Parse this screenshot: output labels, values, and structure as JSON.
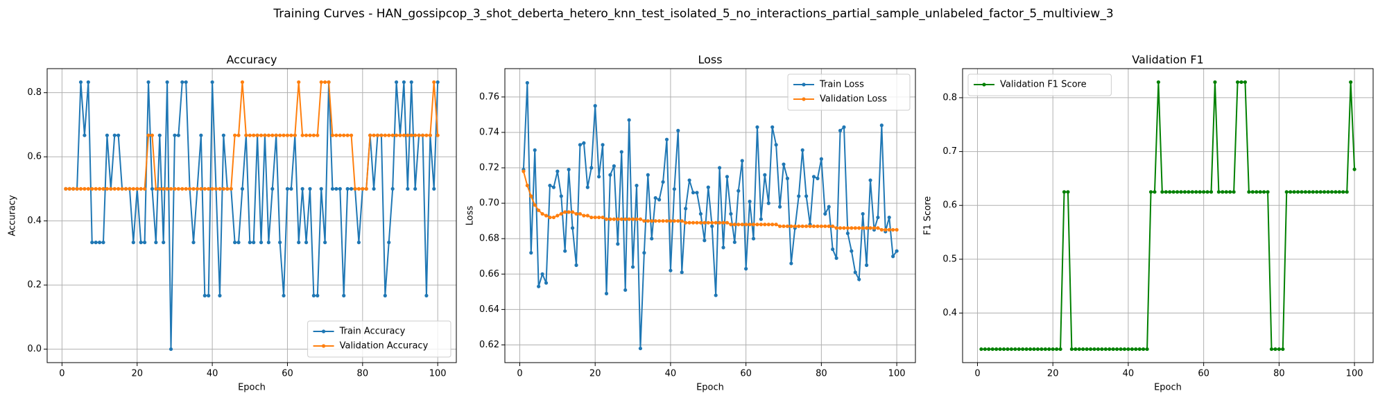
{
  "title": "Training Curves - HAN_gossipcop_3_shot_deberta_hetero_knn_test_isolated_5_no_interactions_partial_sample_unlabeled_factor_5_multiview_3",
  "chart_data": [
    {
      "type": "line",
      "title": "Accuracy",
      "xlabel": "Epoch",
      "ylabel": "Accuracy",
      "x": [
        1,
        2,
        3,
        4,
        5,
        6,
        7,
        8,
        9,
        10,
        11,
        12,
        13,
        14,
        15,
        16,
        17,
        18,
        19,
        20,
        21,
        22,
        23,
        24,
        25,
        26,
        27,
        28,
        29,
        30,
        31,
        32,
        33,
        34,
        35,
        36,
        37,
        38,
        39,
        40,
        41,
        42,
        43,
        44,
        45,
        46,
        47,
        48,
        49,
        50,
        51,
        52,
        53,
        54,
        55,
        56,
        57,
        58,
        59,
        60,
        61,
        62,
        63,
        64,
        65,
        66,
        67,
        68,
        69,
        70,
        71,
        72,
        73,
        74,
        75,
        76,
        77,
        78,
        79,
        80,
        81,
        82,
        83,
        84,
        85,
        86,
        87,
        88,
        89,
        90,
        91,
        92,
        93,
        94,
        95,
        96,
        97,
        98,
        99,
        100
      ],
      "series": [
        {
          "name": "Train Accuracy",
          "color": "#1f77b4",
          "values": [
            0.5,
            0.5,
            0.5,
            0.5,
            0.833,
            0.667,
            0.833,
            0.333,
            0.333,
            0.333,
            0.333,
            0.667,
            0.5,
            0.667,
            0.667,
            0.5,
            0.5,
            0.5,
            0.333,
            0.5,
            0.333,
            0.333,
            0.833,
            0.5,
            0.333,
            0.667,
            0.333,
            0.833,
            0,
            0.667,
            0.667,
            0.833,
            0.833,
            0.5,
            0.333,
            0.5,
            0.667,
            0.167,
            0.167,
            0.833,
            0.5,
            0.167,
            0.667,
            0.5,
            0.5,
            0.333,
            0.333,
            0.5,
            0.667,
            0.333,
            0.333,
            0.667,
            0.333,
            0.667,
            0.333,
            0.5,
            0.667,
            0.333,
            0.167,
            0.5,
            0.5,
            0.667,
            0.333,
            0.5,
            0.333,
            0.5,
            0.167,
            0.167,
            0.5,
            0.333,
            0.833,
            0.5,
            0.5,
            0.5,
            0.167,
            0.5,
            0.5,
            0.5,
            0.333,
            0.5,
            0.5,
            0.667,
            0.5,
            0.667,
            0.667,
            0.167,
            0.333,
            0.5,
            0.833,
            0.667,
            0.833,
            0.5,
            0.833,
            0.5,
            0.667,
            0.667,
            0.167,
            0.667,
            0.5,
            0.833
          ]
        },
        {
          "name": "Validation Accuracy",
          "color": "#ff7f0e",
          "values": [
            0.5,
            0.5,
            0.5,
            0.5,
            0.5,
            0.5,
            0.5,
            0.5,
            0.5,
            0.5,
            0.5,
            0.5,
            0.5,
            0.5,
            0.5,
            0.5,
            0.5,
            0.5,
            0.5,
            0.5,
            0.5,
            0.5,
            0.667,
            0.667,
            0.5,
            0.5,
            0.5,
            0.5,
            0.5,
            0.5,
            0.5,
            0.5,
            0.5,
            0.5,
            0.5,
            0.5,
            0.5,
            0.5,
            0.5,
            0.5,
            0.5,
            0.5,
            0.5,
            0.5,
            0.5,
            0.667,
            0.667,
            0.833,
            0.667,
            0.667,
            0.667,
            0.667,
            0.667,
            0.667,
            0.667,
            0.667,
            0.667,
            0.667,
            0.667,
            0.667,
            0.667,
            0.667,
            0.833,
            0.667,
            0.667,
            0.667,
            0.667,
            0.667,
            0.833,
            0.833,
            0.833,
            0.667,
            0.667,
            0.667,
            0.667,
            0.667,
            0.667,
            0.5,
            0.5,
            0.5,
            0.5,
            0.667,
            0.667,
            0.667,
            0.667,
            0.667,
            0.667,
            0.667,
            0.667,
            0.667,
            0.667,
            0.667,
            0.667,
            0.667,
            0.667,
            0.667,
            0.667,
            0.667,
            0.833,
            0.667
          ]
        }
      ],
      "xlim": [
        -3.95,
        104.95
      ],
      "xticks": [
        0,
        20,
        40,
        60,
        80,
        100
      ],
      "ylim": [
        -0.042,
        0.875
      ],
      "yticks": [
        {
          "value": 0,
          "label": "0.0"
        },
        0.2,
        0.4,
        0.6,
        0.8
      ],
      "grid": true,
      "legend": "lower right"
    },
    {
      "type": "line",
      "title": "Loss",
      "xlabel": "Epoch",
      "ylabel": "Loss",
      "x": [
        1,
        2,
        3,
        4,
        5,
        6,
        7,
        8,
        9,
        10,
        11,
        12,
        13,
        14,
        15,
        16,
        17,
        18,
        19,
        20,
        21,
        22,
        23,
        24,
        25,
        26,
        27,
        28,
        29,
        30,
        31,
        32,
        33,
        34,
        35,
        36,
        37,
        38,
        39,
        40,
        41,
        42,
        43,
        44,
        45,
        46,
        47,
        48,
        49,
        50,
        51,
        52,
        53,
        54,
        55,
        56,
        57,
        58,
        59,
        60,
        61,
        62,
        63,
        64,
        65,
        66,
        67,
        68,
        69,
        70,
        71,
        72,
        73,
        74,
        75,
        76,
        77,
        78,
        79,
        80,
        81,
        82,
        83,
        84,
        85,
        86,
        87,
        88,
        89,
        90,
        91,
        92,
        93,
        94,
        95,
        96,
        97,
        98,
        99,
        100
      ],
      "series": [
        {
          "name": "Train Loss",
          "color": "#1f77b4",
          "values": [
            0.719,
            0.768,
            0.672,
            0.73,
            0.653,
            0.66,
            0.655,
            0.71,
            0.709,
            0.718,
            0.704,
            0.673,
            0.719,
            0.686,
            0.665,
            0.733,
            0.734,
            0.709,
            0.72,
            0.755,
            0.715,
            0.733,
            0.649,
            0.716,
            0.721,
            0.677,
            0.729,
            0.651,
            0.747,
            0.664,
            0.71,
            0.618,
            0.672,
            0.716,
            0.68,
            0.703,
            0.702,
            0.712,
            0.736,
            0.662,
            0.708,
            0.741,
            0.661,
            0.697,
            0.713,
            0.706,
            0.706,
            0.694,
            0.679,
            0.709,
            0.687,
            0.648,
            0.72,
            0.675,
            0.715,
            0.694,
            0.678,
            0.707,
            0.724,
            0.663,
            0.701,
            0.68,
            0.743,
            0.691,
            0.716,
            0.7,
            0.743,
            0.733,
            0.698,
            0.722,
            0.714,
            0.666,
            0.686,
            0.704,
            0.73,
            0.704,
            0.688,
            0.715,
            0.714,
            0.725,
            0.694,
            0.698,
            0.674,
            0.669,
            0.741,
            0.743,
            0.683,
            0.673,
            0.661,
            0.657,
            0.694,
            0.665,
            0.713,
            0.685,
            0.692,
            0.744,
            0.684,
            0.692,
            0.67,
            0.673
          ]
        },
        {
          "name": "Validation Loss",
          "color": "#ff7f0e",
          "values": [
            0.718,
            0.71,
            0.704,
            0.699,
            0.696,
            0.694,
            0.693,
            0.692,
            0.692,
            0.693,
            0.694,
            0.695,
            0.695,
            0.695,
            0.694,
            0.694,
            0.693,
            0.693,
            0.692,
            0.692,
            0.692,
            0.692,
            0.691,
            0.691,
            0.691,
            0.691,
            0.691,
            0.691,
            0.691,
            0.691,
            0.691,
            0.691,
            0.69,
            0.69,
            0.69,
            0.69,
            0.69,
            0.69,
            0.69,
            0.69,
            0.69,
            0.69,
            0.69,
            0.689,
            0.689,
            0.689,
            0.689,
            0.689,
            0.689,
            0.689,
            0.689,
            0.689,
            0.689,
            0.689,
            0.689,
            0.688,
            0.688,
            0.688,
            0.688,
            0.688,
            0.688,
            0.688,
            0.688,
            0.688,
            0.688,
            0.688,
            0.688,
            0.688,
            0.687,
            0.687,
            0.687,
            0.687,
            0.687,
            0.687,
            0.687,
            0.687,
            0.687,
            0.687,
            0.687,
            0.687,
            0.687,
            0.687,
            0.687,
            0.686,
            0.686,
            0.686,
            0.686,
            0.686,
            0.686,
            0.686,
            0.686,
            0.686,
            0.686,
            0.686,
            0.686,
            0.685,
            0.685,
            0.685,
            0.685,
            0.685
          ]
        }
      ],
      "xlim": [
        -3.95,
        104.95
      ],
      "xticks": [
        0,
        20,
        40,
        60,
        80,
        100
      ],
      "ylim": [
        0.61,
        0.776
      ],
      "yticks": [
        0.62,
        0.64,
        0.66,
        0.68,
        {
          "value": 0.7,
          "label": "0.70"
        },
        0.72,
        0.74,
        0.76
      ],
      "grid": true,
      "legend": "upper right"
    },
    {
      "type": "line",
      "title": "Validation F1",
      "xlabel": "Epoch",
      "ylabel": "F1 Score",
      "x": [
        1,
        2,
        3,
        4,
        5,
        6,
        7,
        8,
        9,
        10,
        11,
        12,
        13,
        14,
        15,
        16,
        17,
        18,
        19,
        20,
        21,
        22,
        23,
        24,
        25,
        26,
        27,
        28,
        29,
        30,
        31,
        32,
        33,
        34,
        35,
        36,
        37,
        38,
        39,
        40,
        41,
        42,
        43,
        44,
        45,
        46,
        47,
        48,
        49,
        50,
        51,
        52,
        53,
        54,
        55,
        56,
        57,
        58,
        59,
        60,
        61,
        62,
        63,
        64,
        65,
        66,
        67,
        68,
        69,
        70,
        71,
        72,
        73,
        74,
        75,
        76,
        77,
        78,
        79,
        80,
        81,
        82,
        83,
        84,
        85,
        86,
        87,
        88,
        89,
        90,
        91,
        92,
        93,
        94,
        95,
        96,
        97,
        98,
        99,
        100
      ],
      "series": [
        {
          "name": "Validation F1 Score",
          "color": "#008000",
          "values": [
            0.333,
            0.333,
            0.333,
            0.333,
            0.333,
            0.333,
            0.333,
            0.333,
            0.333,
            0.333,
            0.333,
            0.333,
            0.333,
            0.333,
            0.333,
            0.333,
            0.333,
            0.333,
            0.333,
            0.333,
            0.333,
            0.333,
            0.625,
            0.625,
            0.333,
            0.333,
            0.333,
            0.333,
            0.333,
            0.333,
            0.333,
            0.333,
            0.333,
            0.333,
            0.333,
            0.333,
            0.333,
            0.333,
            0.333,
            0.333,
            0.333,
            0.333,
            0.333,
            0.333,
            0.333,
            0.625,
            0.625,
            0.829,
            0.625,
            0.625,
            0.625,
            0.625,
            0.625,
            0.625,
            0.625,
            0.625,
            0.625,
            0.625,
            0.625,
            0.625,
            0.625,
            0.625,
            0.829,
            0.625,
            0.625,
            0.625,
            0.625,
            0.625,
            0.829,
            0.829,
            0.829,
            0.625,
            0.625,
            0.625,
            0.625,
            0.625,
            0.625,
            0.333,
            0.333,
            0.333,
            0.333,
            0.625,
            0.625,
            0.625,
            0.625,
            0.625,
            0.625,
            0.625,
            0.625,
            0.625,
            0.625,
            0.625,
            0.625,
            0.625,
            0.625,
            0.625,
            0.625,
            0.625,
            0.829,
            0.667
          ]
        }
      ],
      "xlim": [
        -3.95,
        104.95
      ],
      "xticks": [
        0,
        20,
        40,
        60,
        80,
        100
      ],
      "ylim": [
        0.308,
        0.854
      ],
      "yticks": [
        0.4,
        0.5,
        0.6,
        0.7,
        0.8
      ],
      "grid": true,
      "legend": "upper left"
    }
  ]
}
